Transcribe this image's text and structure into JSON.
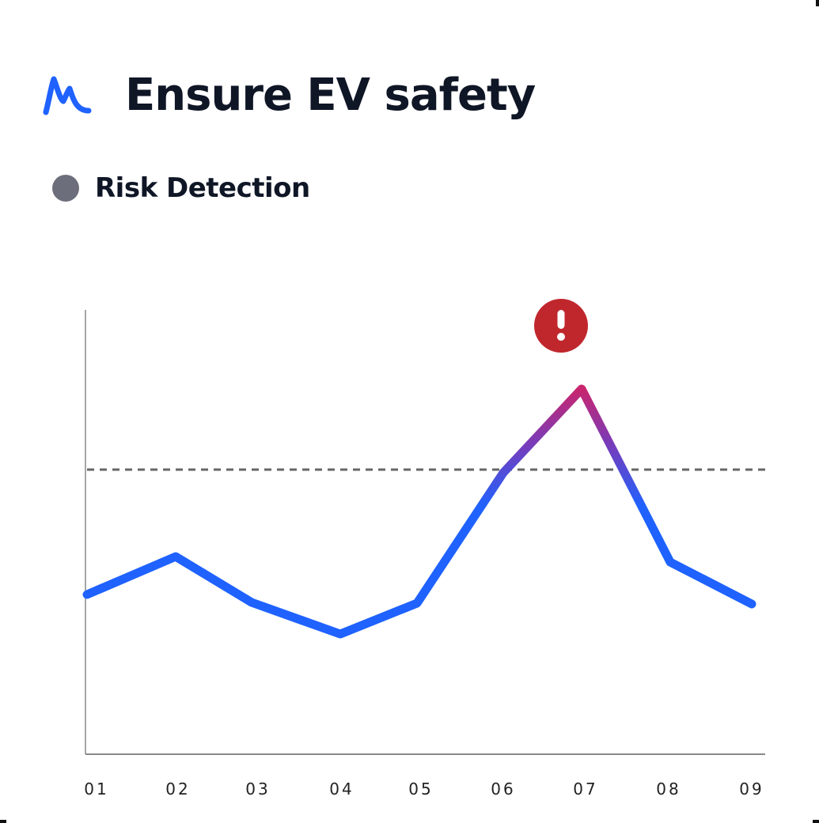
{
  "header": {
    "title": "Ensure EV safety",
    "logo_icon": "peak-line-logo-icon"
  },
  "legend": {
    "label": "Risk Detection",
    "dot_color": "#6c6f7b"
  },
  "alert": {
    "icon": "exclamation-circle-icon",
    "color": "#c0272d"
  },
  "chart_data": {
    "type": "line",
    "title": "Ensure EV safety",
    "series": [
      {
        "name": "Risk Detection",
        "values": [
          36,
          45,
          34,
          27,
          34,
          64,
          83,
          44,
          34
        ]
      }
    ],
    "categories": [
      "01",
      "02",
      "03",
      "04",
      "05",
      "06",
      "07",
      "08",
      "09"
    ],
    "threshold": 65,
    "threshold_style": "dashed",
    "xlabel": "",
    "ylabel": "",
    "ylim": [
      0,
      100
    ],
    "grid": false,
    "annotations": [
      {
        "x": "07",
        "type": "alert-icon",
        "text": "!"
      }
    ],
    "colors": {
      "line": "#1f62ff",
      "peak_gradient": "#c8266e",
      "threshold": "#666666"
    }
  }
}
